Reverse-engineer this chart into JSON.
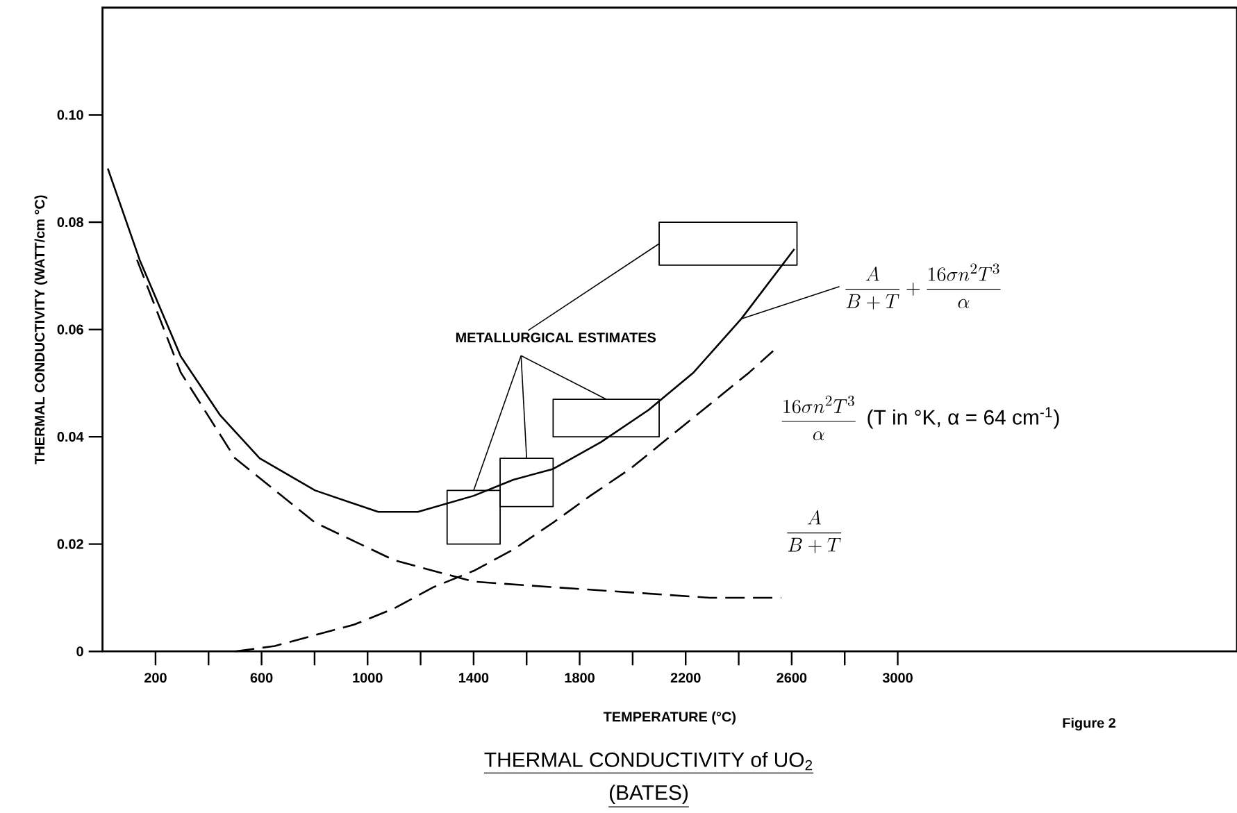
{
  "chart_data": {
    "type": "line",
    "title": "THERMAL CONDUCTIVITY of UO$_{2}$",
    "subtitle": "(BATES)",
    "xlabel": "TEMPERATURE (°C)",
    "ylabel": "THERMAL CONDUCTIVITY (WATT/cm °C)",
    "xlim": [
      0,
      4280
    ],
    "ylim": [
      0,
      0.12
    ],
    "xticks": [
      200,
      600,
      1000,
      1400,
      1800,
      2200,
      2600,
      3000
    ],
    "yticks": [
      0,
      0.02,
      0.04,
      0.06,
      0.08,
      {
        "value": 0.1,
        "label": "0.10"
      }
    ],
    "annotations": [
      {
        "text": "METALLURGICAL ESTIMATES",
        "x": 1400,
        "y": 0.03
      },
      "(T in °K, α = 64 cm$^{-1}$)",
      "Figure 2"
    ],
    "series": [
      {
        "name": "\\frac{A}{B+T}+\\frac{16\\sigma n^{2}T^{3}}{\\alpha}",
        "color": "#000000",
        "line_style": "solid",
        "x": [
          20,
          140,
          295,
          444,
          593,
          802,
          1040,
          1190,
          1400,
          1550,
          1700,
          1880,
          2060,
          2230,
          2410,
          2610
        ],
        "values": [
          0.09,
          0.073,
          0.055,
          0.044,
          0.036,
          0.03,
          0.026,
          0.026,
          0.029,
          0.032,
          0.034,
          0.039,
          0.045,
          0.052,
          0.062,
          0.075
        ]
      },
      {
        "name": "\\frac{A}{B+T}",
        "color": "#000000",
        "line_style": "dashed",
        "x": [
          130,
          295,
          500,
          802,
          1100,
          1400,
          1690,
          1990,
          2290,
          2560
        ],
        "values": [
          0.073,
          0.052,
          0.036,
          0.024,
          0.017,
          0.013,
          0.012,
          0.011,
          0.01,
          0.01
        ]
      },
      {
        "name": "\\frac{16\\sigma n^{2}T^{3}}{\\alpha}",
        "color": "#000000",
        "line_style": "dashed",
        "x": [
          500,
          650,
          800,
          950,
          1100,
          1250,
          1400,
          1550,
          1700,
          1840,
          1990,
          2140,
          2290,
          2440,
          2530
        ],
        "values": [
          0.0,
          0.001,
          0.003,
          0.005,
          0.008,
          0.012,
          0.015,
          0.019,
          0.024,
          0.029,
          0.034,
          0.04,
          0.046,
          0.052,
          0.056
        ]
      },
      {
        "type": "histogram",
        "color": "#000000",
        "bins": [
          1300,
          1500,
          1700,
          2100,
          2620
        ],
        "base": [
          0.02,
          0.027,
          0.04,
          0.072
        ],
        "values": [
          0.01,
          0.009,
          0.007,
          0.008
        ]
      }
    ]
  }
}
